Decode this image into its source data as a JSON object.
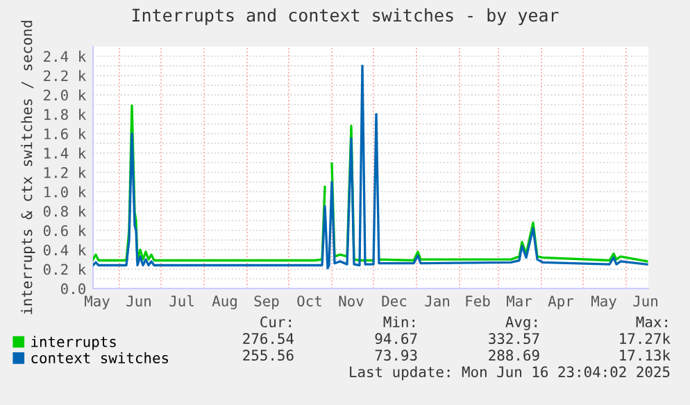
{
  "chart_data": {
    "type": "line",
    "title": "Interrupts and context switches - by year",
    "ylabel": "interrupts & ctx switches / second",
    "xlim": [
      "2024-05-13",
      "2025-06-17"
    ],
    "xticks": [
      {
        "value": "2024-05-16",
        "label": "May"
      },
      {
        "value": "2024-06-01",
        "label": null
      },
      {
        "value": "2024-06-15",
        "label": "Jun"
      },
      {
        "value": "2024-07-01",
        "label": null
      },
      {
        "value": "2024-07-16",
        "label": "Jul"
      },
      {
        "value": "2024-08-01",
        "label": null
      },
      {
        "value": "2024-08-16",
        "label": "Aug"
      },
      {
        "value": "2024-09-01",
        "label": null
      },
      {
        "value": "2024-09-15",
        "label": "Sep"
      },
      {
        "value": "2024-10-01",
        "label": null
      },
      {
        "value": "2024-10-16",
        "label": "Oct"
      },
      {
        "value": "2024-11-01",
        "label": null
      },
      {
        "value": "2024-11-15",
        "label": "Nov"
      },
      {
        "value": "2024-12-01",
        "label": null
      },
      {
        "value": "2024-12-16",
        "label": "Dec"
      },
      {
        "value": "2025-01-01",
        "label": null
      },
      {
        "value": "2025-01-16",
        "label": "Jan"
      },
      {
        "value": "2025-02-01",
        "label": null
      },
      {
        "value": "2025-02-14",
        "label": "Feb"
      },
      {
        "value": "2025-03-01",
        "label": null
      },
      {
        "value": "2025-03-16",
        "label": "Mar"
      },
      {
        "value": "2025-04-01",
        "label": null
      },
      {
        "value": "2025-04-15",
        "label": "Apr"
      },
      {
        "value": "2025-05-01",
        "label": null
      },
      {
        "value": "2025-05-16",
        "label": "May"
      },
      {
        "value": "2025-06-01",
        "label": null
      },
      {
        "value": "2025-06-15",
        "label": "Jun"
      }
    ],
    "ylim": [
      0,
      2500
    ],
    "yticks": [
      {
        "value": 0,
        "label": "0.0"
      },
      {
        "value": 100,
        "label": null
      },
      {
        "value": 200,
        "label": "0.2 k"
      },
      {
        "value": 300,
        "label": null
      },
      {
        "value": 400,
        "label": "0.4 k"
      },
      {
        "value": 500,
        "label": null
      },
      {
        "value": 600,
        "label": "0.6 k"
      },
      {
        "value": 700,
        "label": null
      },
      {
        "value": 800,
        "label": "0.8 k"
      },
      {
        "value": 900,
        "label": null
      },
      {
        "value": 1000,
        "label": "1.0 k"
      },
      {
        "value": 1100,
        "label": null
      },
      {
        "value": 1200,
        "label": "1.2 k"
      },
      {
        "value": 1300,
        "label": null
      },
      {
        "value": 1400,
        "label": "1.4 k"
      },
      {
        "value": 1500,
        "label": null
      },
      {
        "value": 1600,
        "label": "1.6 k"
      },
      {
        "value": 1700,
        "label": null
      },
      {
        "value": 1800,
        "label": "1.8 k"
      },
      {
        "value": 1900,
        "label": null
      },
      {
        "value": 2000,
        "label": "2.0 k"
      },
      {
        "value": 2100,
        "label": null
      },
      {
        "value": 2200,
        "label": "2.2 k"
      },
      {
        "value": 2300,
        "label": null
      },
      {
        "value": 2400,
        "label": "2.4 k"
      }
    ],
    "grid": true,
    "legend": "bottom left",
    "marker": "none",
    "line_style": "solid",
    "x": [
      "2024-05-13",
      "2024-05-15",
      "2024-05-17",
      "2024-06-06",
      "2024-06-08",
      "2024-06-10",
      "2024-06-12",
      "2024-06-13",
      "2024-06-14",
      "2024-06-16",
      "2024-06-18",
      "2024-06-20",
      "2024-06-22",
      "2024-06-24",
      "2024-06-26",
      "2024-06-28",
      "2024-10-20",
      "2024-10-25",
      "2024-10-27",
      "2024-10-29",
      "2024-10-30",
      "2024-11-01",
      "2024-11-03",
      "2024-11-07",
      "2024-11-12",
      "2024-11-15",
      "2024-11-17",
      "2024-11-21",
      "2024-11-23",
      "2024-11-25",
      "2024-12-01",
      "2024-12-03",
      "2024-12-05",
      "2024-12-30",
      "2025-01-02",
      "2025-01-04",
      "2025-03-10",
      "2025-03-16",
      "2025-03-18",
      "2025-03-21",
      "2025-03-26",
      "2025-03-29",
      "2025-04-02",
      "2025-05-20",
      "2025-05-23",
      "2025-05-25",
      "2025-05-28",
      "2025-06-16"
    ],
    "series": [
      {
        "name": "interrupts",
        "color": "#00cc00",
        "values": [
          300,
          350,
          290,
          290,
          600,
          1890,
          790,
          700,
          290,
          400,
          300,
          380,
          300,
          350,
          290,
          290,
          290,
          300,
          1050,
          null,
          null,
          1290,
          330,
          350,
          330,
          1680,
          300,
          290,
          290,
          290,
          290,
          null,
          300,
          290,
          380,
          300,
          300,
          330,
          480,
          360,
          680,
          330,
          320,
          290,
          360,
          300,
          330,
          280
        ]
      },
      {
        "name": "context switches",
        "color": "#0066b3",
        "values": [
          240,
          270,
          240,
          240,
          500,
          1600,
          650,
          600,
          240,
          330,
          240,
          300,
          240,
          280,
          240,
          240,
          240,
          240,
          850,
          210,
          240,
          1100,
          260,
          280,
          250,
          1550,
          250,
          240,
          2300,
          250,
          250,
          1800,
          260,
          260,
          340,
          260,
          270,
          290,
          440,
          320,
          620,
          300,
          270,
          250,
          320,
          250,
          280,
          250
        ]
      }
    ],
    "annotations": [
      "Cur:",
      "Min:",
      "Avg:",
      "Max:",
      "276.54",
      "94.67",
      "332.57",
      "17.27k",
      "255.56",
      "73.93",
      "288.69",
      "17.13k",
      "Last update: Mon Jun 16 23:04:02 2025"
    ]
  }
}
